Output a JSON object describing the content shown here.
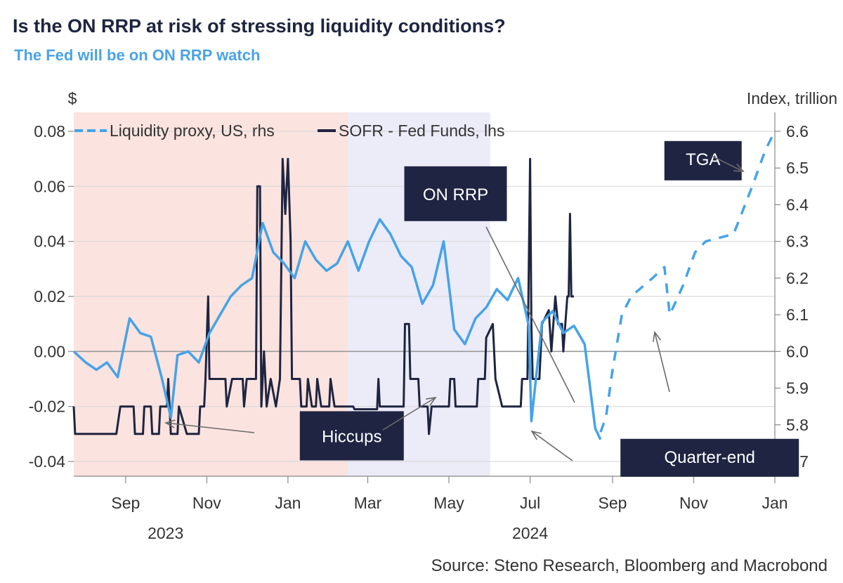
{
  "title": "Is the ON RRP at risk of stressing liquidity conditions?",
  "subtitle": "The Fed will be on ON RRP watch",
  "source": "Source: Steno Research, Bloomberg and Macrobond",
  "colors": {
    "liquidity": "#45a3e8",
    "sofr": "#1e2540",
    "label_box": "#1f2442",
    "shade_2023": "#fbe3df",
    "shade_2024": "#ecebf8",
    "title": "#1d2540",
    "subtitle": "#4aa3e6"
  },
  "chart_data": {
    "type": "line",
    "left_axis": {
      "unit_label": "$",
      "range": [
        -0.04,
        0.08
      ],
      "ticks": [
        "0.08",
        "0.06",
        "0.04",
        "0.02",
        "0.00",
        "-0.02",
        "-0.04"
      ],
      "tick_values": [
        0.08,
        0.06,
        0.04,
        0.02,
        0.0,
        -0.02,
        -0.04
      ]
    },
    "right_axis": {
      "unit_label": "Index, trillion",
      "range": [
        5.7,
        6.6
      ],
      "ticks": [
        "6.6",
        "6.5",
        "6.4",
        "6.3",
        "6.2",
        "6.1",
        "6.0",
        "5.9",
        "5.8",
        "5.7"
      ],
      "tick_values": [
        6.6,
        6.5,
        6.4,
        6.3,
        6.2,
        6.1,
        6.0,
        5.9,
        5.8,
        5.7
      ]
    },
    "x_axis": {
      "month_ticks": [
        {
          "label": "Sep",
          "date": "2023-09-01"
        },
        {
          "label": "Nov",
          "date": "2023-11-01"
        },
        {
          "label": "Jan",
          "date": "2024-01-01"
        },
        {
          "label": "Mar",
          "date": "2024-03-01"
        },
        {
          "label": "May",
          "date": "2024-05-01"
        },
        {
          "label": "Jul",
          "date": "2024-07-01"
        },
        {
          "label": "Sep",
          "date": "2024-09-01"
        },
        {
          "label": "Nov",
          "date": "2024-11-01"
        },
        {
          "label": "Jan",
          "date": "2025-01-01"
        }
      ],
      "year_labels": [
        {
          "label": "2023",
          "date": "2023-10-01"
        },
        {
          "label": "2024",
          "date": "2024-07-01"
        }
      ],
      "range": [
        "2023-07-24",
        "2025-01-01"
      ]
    },
    "shaded_regions": [
      {
        "start": "2023-07-24",
        "end": "2024-02-15",
        "color": "#fbe3df"
      },
      {
        "start": "2024-02-15",
        "end": "2024-06-01",
        "color": "#ecebf8"
      }
    ],
    "series": [
      {
        "name": "Liquidity proxy, US, rhs",
        "axis": "right",
        "style": "solid",
        "points": [
          [
            "2023-07-24",
            6.0
          ],
          [
            "2023-08-02",
            5.97
          ],
          [
            "2023-08-10",
            5.95
          ],
          [
            "2023-08-18",
            5.97
          ],
          [
            "2023-08-26",
            5.93
          ],
          [
            "2023-09-04",
            6.09
          ],
          [
            "2023-09-12",
            6.05
          ],
          [
            "2023-09-20",
            6.04
          ],
          [
            "2023-09-28",
            5.93
          ],
          [
            "2023-10-05",
            5.82
          ],
          [
            "2023-10-10",
            5.99
          ],
          [
            "2023-10-18",
            6.0
          ],
          [
            "2023-10-26",
            5.97
          ],
          [
            "2023-11-03",
            6.05
          ],
          [
            "2023-11-11",
            6.1
          ],
          [
            "2023-11-19",
            6.15
          ],
          [
            "2023-11-27",
            6.18
          ],
          [
            "2023-12-05",
            6.2
          ],
          [
            "2023-12-13",
            6.35
          ],
          [
            "2023-12-21",
            6.27
          ],
          [
            "2023-12-29",
            6.24
          ],
          [
            "2024-01-06",
            6.2
          ],
          [
            "2024-01-14",
            6.3
          ],
          [
            "2024-01-22",
            6.25
          ],
          [
            "2024-01-30",
            6.22
          ],
          [
            "2024-02-07",
            6.24
          ],
          [
            "2024-02-15",
            6.3
          ],
          [
            "2024-02-23",
            6.22
          ],
          [
            "2024-03-02",
            6.3
          ],
          [
            "2024-03-10",
            6.36
          ],
          [
            "2024-03-18",
            6.32
          ],
          [
            "2024-03-26",
            6.26
          ],
          [
            "2024-04-03",
            6.23
          ],
          [
            "2024-04-11",
            6.13
          ],
          [
            "2024-04-19",
            6.18
          ],
          [
            "2024-04-27",
            6.3
          ],
          [
            "2024-05-05",
            6.06
          ],
          [
            "2024-05-13",
            6.02
          ],
          [
            "2024-05-21",
            6.09
          ],
          [
            "2024-05-29",
            6.12
          ],
          [
            "2024-06-06",
            6.17
          ],
          [
            "2024-06-14",
            6.14
          ],
          [
            "2024-06-22",
            6.2
          ],
          [
            "2024-06-30",
            6.07
          ],
          [
            "2024-07-02",
            5.81
          ],
          [
            "2024-07-10",
            6.08
          ],
          [
            "2024-07-18",
            6.11
          ],
          [
            "2024-07-26",
            6.05
          ],
          [
            "2024-08-03",
            6.07
          ],
          [
            "2024-08-11",
            6.02
          ],
          [
            "2024-08-19",
            5.79
          ],
          [
            "2024-08-23",
            5.76
          ]
        ]
      },
      {
        "name": "Liquidity proxy, US, rhs (projection)",
        "axis": "right",
        "style": "dashed",
        "points": [
          [
            "2024-08-23",
            5.78
          ],
          [
            "2024-08-27",
            5.82
          ],
          [
            "2024-09-01",
            5.95
          ],
          [
            "2024-09-08",
            6.1
          ],
          [
            "2024-09-15",
            6.15
          ],
          [
            "2024-10-01",
            6.2
          ],
          [
            "2024-10-10",
            6.23
          ],
          [
            "2024-10-14",
            6.1
          ],
          [
            "2024-10-24",
            6.18
          ],
          [
            "2024-11-02",
            6.27
          ],
          [
            "2024-11-10",
            6.3
          ],
          [
            "2024-12-01",
            6.32
          ],
          [
            "2024-12-15",
            6.45
          ],
          [
            "2024-12-25",
            6.55
          ],
          [
            "2025-01-01",
            6.6
          ]
        ]
      },
      {
        "name": "SOFR - Fed Funds, lhs",
        "axis": "left",
        "style": "solid",
        "points": [
          [
            "2023-07-24",
            -0.02
          ],
          [
            "2023-07-25",
            -0.03
          ],
          [
            "2023-08-25",
            -0.03
          ],
          [
            "2023-08-28",
            -0.02
          ],
          [
            "2023-09-07",
            -0.02
          ],
          [
            "2023-09-08",
            -0.03
          ],
          [
            "2023-09-14",
            -0.03
          ],
          [
            "2023-09-15",
            -0.02
          ],
          [
            "2023-09-20",
            -0.02
          ],
          [
            "2023-09-21",
            -0.03
          ],
          [
            "2023-09-26",
            -0.03
          ],
          [
            "2023-09-27",
            -0.02
          ],
          [
            "2023-10-02",
            -0.02
          ],
          [
            "2023-10-03",
            -0.01
          ],
          [
            "2023-10-05",
            -0.03
          ],
          [
            "2023-10-10",
            -0.03
          ],
          [
            "2023-10-11",
            -0.02
          ],
          [
            "2023-10-17",
            -0.03
          ],
          [
            "2023-10-26",
            -0.03
          ],
          [
            "2023-10-27",
            -0.02
          ],
          [
            "2023-10-30",
            -0.02
          ],
          [
            "2023-10-31",
            -0.01
          ],
          [
            "2023-11-02",
            0.02
          ],
          [
            "2023-11-03",
            -0.01
          ],
          [
            "2023-11-15",
            -0.01
          ],
          [
            "2023-11-16",
            -0.02
          ],
          [
            "2023-11-20",
            -0.01
          ],
          [
            "2023-11-28",
            -0.01
          ],
          [
            "2023-11-29",
            -0.02
          ],
          [
            "2023-12-01",
            -0.01
          ],
          [
            "2023-12-08",
            -0.01
          ],
          [
            "2023-12-09",
            0.06
          ],
          [
            "2023-12-11",
            0.06
          ],
          [
            "2023-12-12",
            -0.02
          ],
          [
            "2023-12-14",
            0.0
          ],
          [
            "2023-12-16",
            -0.02
          ],
          [
            "2023-12-19",
            -0.01
          ],
          [
            "2023-12-23",
            -0.02
          ],
          [
            "2023-12-26",
            -0.01
          ],
          [
            "2023-12-28",
            0.07
          ],
          [
            "2023-12-30",
            0.05
          ],
          [
            "2024-01-01",
            0.07
          ],
          [
            "2024-01-03",
            0.04
          ],
          [
            "2024-01-04",
            -0.01
          ],
          [
            "2024-01-10",
            -0.01
          ],
          [
            "2024-01-11",
            -0.02
          ],
          [
            "2024-01-15",
            -0.02
          ],
          [
            "2024-01-16",
            -0.01
          ],
          [
            "2024-01-19",
            -0.02
          ],
          [
            "2024-01-22",
            -0.02
          ],
          [
            "2024-01-23",
            -0.01
          ],
          [
            "2024-01-26",
            -0.02
          ],
          [
            "2024-02-01",
            -0.02
          ],
          [
            "2024-02-02",
            -0.01
          ],
          [
            "2024-02-05",
            -0.02
          ],
          [
            "2024-02-19",
            -0.02
          ],
          [
            "2024-02-20",
            -0.021
          ],
          [
            "2024-03-08",
            -0.021
          ],
          [
            "2024-03-09",
            -0.01
          ],
          [
            "2024-03-10",
            -0.02
          ],
          [
            "2024-03-28",
            -0.02
          ],
          [
            "2024-03-29",
            0.01
          ],
          [
            "2024-04-01",
            0.01
          ],
          [
            "2024-04-02",
            -0.01
          ],
          [
            "2024-04-08",
            -0.01
          ],
          [
            "2024-04-09",
            -0.02
          ],
          [
            "2024-04-15",
            -0.02
          ],
          [
            "2024-04-16",
            -0.03
          ],
          [
            "2024-04-18",
            -0.02
          ],
          [
            "2024-05-01",
            -0.02
          ],
          [
            "2024-05-02",
            -0.01
          ],
          [
            "2024-05-05",
            -0.01
          ],
          [
            "2024-05-06",
            -0.02
          ],
          [
            "2024-05-22",
            -0.02
          ],
          [
            "2024-05-23",
            -0.01
          ],
          [
            "2024-05-28",
            -0.01
          ],
          [
            "2024-05-29",
            0.005
          ],
          [
            "2024-06-03",
            0.01
          ],
          [
            "2024-06-05",
            -0.01
          ],
          [
            "2024-06-10",
            -0.02
          ],
          [
            "2024-06-24",
            -0.02
          ],
          [
            "2024-06-25",
            -0.01
          ],
          [
            "2024-06-29",
            -0.01
          ],
          [
            "2024-07-01",
            0.07
          ],
          [
            "2024-07-02",
            0.01
          ],
          [
            "2024-07-03",
            -0.01
          ],
          [
            "2024-07-08",
            -0.01
          ],
          [
            "2024-07-10",
            0.01
          ],
          [
            "2024-07-15",
            0.015
          ],
          [
            "2024-07-17",
            0.0
          ],
          [
            "2024-07-20",
            0.02
          ],
          [
            "2024-07-22",
            0.01
          ],
          [
            "2024-07-25",
            0.01
          ],
          [
            "2024-07-26",
            0.0
          ],
          [
            "2024-07-29",
            0.02
          ],
          [
            "2024-07-30",
            0.02
          ],
          [
            "2024-07-31",
            0.05
          ],
          [
            "2024-08-01",
            0.02
          ],
          [
            "2024-08-03",
            0.02
          ]
        ]
      }
    ],
    "annotations": [
      {
        "label": "TGA",
        "date": "2024-11-08",
        "right_value": 6.52
      },
      {
        "label": "ON RRP",
        "date": "2024-05-06",
        "right_value": 6.43
      },
      {
        "label": "Hiccups",
        "date": "2024-02-18",
        "right_value": 5.77
      },
      {
        "label": "Quarter-end",
        "date": "2024-11-13",
        "right_value": 5.71
      }
    ],
    "legend": [
      "Liquidity proxy, US, rhs",
      "SOFR - Fed Funds, lhs"
    ],
    "legend_position": "top-left",
    "grid": "horizontal"
  }
}
